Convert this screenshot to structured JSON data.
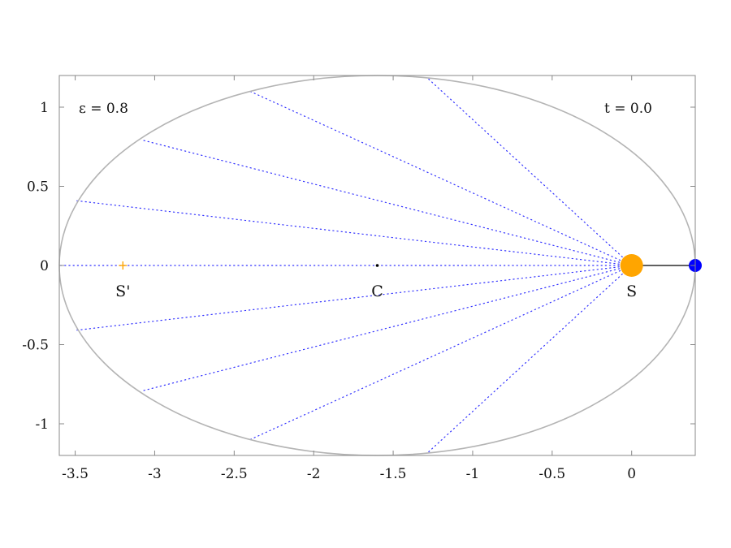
{
  "chart_data": {
    "type": "scatter",
    "title": "",
    "xlabel": "",
    "ylabel": "",
    "xlim": [
      -3.6,
      0.4
    ],
    "ylim": [
      -1.2,
      1.2
    ],
    "x_ticks": [
      -3.5,
      -3,
      -2.5,
      -2,
      -1.5,
      -1,
      -0.5,
      0
    ],
    "x_tick_labels": [
      "-3.5",
      "-3",
      "-2.5",
      "-2",
      "-1.5",
      "-1",
      "-0.5",
      "0"
    ],
    "y_ticks": [
      1,
      0.5,
      0,
      -0.5,
      -1
    ],
    "y_tick_labels": [
      "1",
      "0.5",
      "0",
      "-0.5",
      "-1"
    ],
    "grid": false,
    "orbit": {
      "center": [
        -1.6,
        0
      ],
      "semi_major": 2.0,
      "semi_minor": 1.2
    },
    "radial_lines_to": [
      [
        -3.6,
        0
      ],
      [
        -3.5,
        0.41
      ],
      [
        -3.07,
        0.79
      ],
      [
        -2.4,
        1.1
      ],
      [
        -1.28,
        1.18
      ],
      [
        -3.5,
        -0.41
      ],
      [
        -3.07,
        -0.79
      ],
      [
        -2.4,
        -1.1
      ],
      [
        -1.28,
        -1.18
      ]
    ],
    "points": [
      {
        "name": "S",
        "label": "S",
        "x": 0,
        "y": 0,
        "color": "#ffa500"
      },
      {
        "name": "S-prime",
        "label": "S'",
        "x": -3.2,
        "y": 0,
        "color": "#ffa500"
      },
      {
        "name": "C",
        "label": "C",
        "x": -1.6,
        "y": 0,
        "color": "#000000"
      },
      {
        "name": "planet",
        "label": "",
        "x": 0.4,
        "y": 0,
        "color": "#0000ff"
      }
    ],
    "annotations": {
      "eccentricity": "ε =  0.8",
      "time": "t =  0.0"
    },
    "colors": {
      "orbit": "#b4b4b4",
      "radial_lines": "#3333ff",
      "frame": "#888888",
      "radius_vector": "#000000"
    }
  }
}
